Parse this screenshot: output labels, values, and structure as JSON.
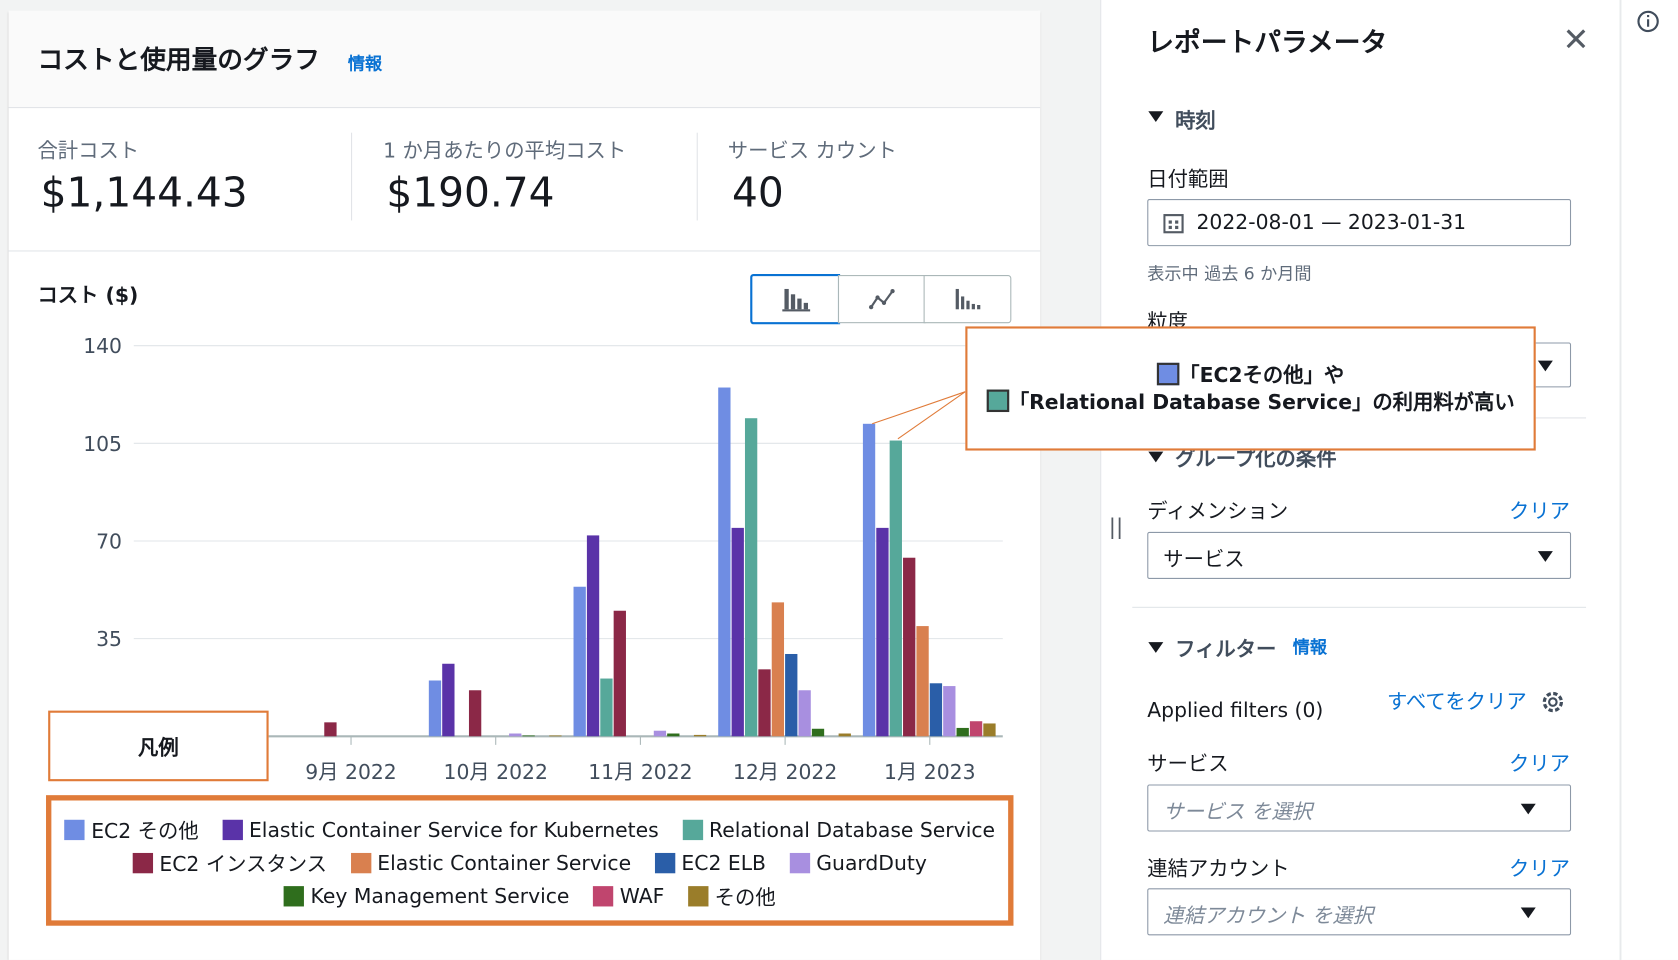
{
  "header": {
    "title": "コストと使用量のグラフ",
    "info": "情報"
  },
  "metrics": [
    {
      "label": "合計コスト",
      "value": "$1,144.43"
    },
    {
      "label": "1 か月あたりの平均コスト",
      "value": "$190.74"
    },
    {
      "label": "サービス カウント",
      "value": "40"
    }
  ],
  "chart_data": {
    "type": "bar",
    "ylabel": "コスト ($)",
    "categories": [
      "9月 2022",
      "10月 2022",
      "11月 2022",
      "12月 2022",
      "1月 2023"
    ],
    "series": [
      {
        "name": "EC2 その他",
        "color": "#6f8de3",
        "values": [
          0,
          20,
          53.6,
          125,
          112
        ]
      },
      {
        "name": "Elastic Container Service for Kubernetes",
        "color": "#5a33a8",
        "values": [
          0,
          26,
          72,
          74.7,
          74.7
        ]
      },
      {
        "name": "Relational Database Service",
        "color": "#56a89a",
        "values": [
          0,
          0,
          20.7,
          114,
          106
        ]
      },
      {
        "name": "EC2 インスタンス",
        "color": "#8b2847",
        "values": [
          5,
          16.5,
          45,
          24,
          64
        ]
      },
      {
        "name": "Elastic Container Service",
        "color": "#d9804f",
        "values": [
          0,
          0,
          0,
          48,
          39.5
        ]
      },
      {
        "name": "EC2 ELB",
        "color": "#2a5ea8",
        "values": [
          0,
          0,
          0,
          29.5,
          19
        ]
      },
      {
        "name": "GuardDuty",
        "color": "#a88fe0",
        "values": [
          0,
          1,
          2,
          16.5,
          18
        ]
      },
      {
        "name": "Key Management Service",
        "color": "#2f6e1d",
        "values": [
          0,
          0.3,
          1,
          2.7,
          3
        ]
      },
      {
        "name": "WAF",
        "color": "#c0456e",
        "values": [
          0,
          0,
          0,
          0,
          5.4
        ]
      },
      {
        "name": "その他",
        "color": "#9a7d2a",
        "values": [
          0,
          0.3,
          0.5,
          1,
          4.6
        ]
      }
    ],
    "ylim": [
      0,
      140
    ],
    "yticks": [
      35,
      70,
      105,
      140
    ],
    "grid": true,
    "legend_title": "凡例",
    "annotation": [
      "「EC2その他」や",
      "「Relational Database Service」の利用料が高い"
    ]
  },
  "sidebar": {
    "title": "レポートパラメータ",
    "time": {
      "heading": "時刻",
      "date_label": "日付範囲",
      "date_value": "2022-08-01 — 2023-01-31",
      "date_hint": "表示中 過去 6 か月間",
      "granularity_label": "粒度"
    },
    "grouping": {
      "heading": "グループ化の条件",
      "dimension_label": "ディメンション",
      "clear": "クリア",
      "dimension_value": "サービス"
    },
    "filters": {
      "heading": "フィルター",
      "info": "情報",
      "applied": "Applied filters (0)",
      "clear_all": "すべてをクリア",
      "service_label": "サービス",
      "service_clear": "クリア",
      "service_placeholder": "サービス を選択",
      "account_label": "連結アカウント",
      "account_clear": "クリア",
      "account_placeholder": "連結アカウント を選択"
    }
  }
}
